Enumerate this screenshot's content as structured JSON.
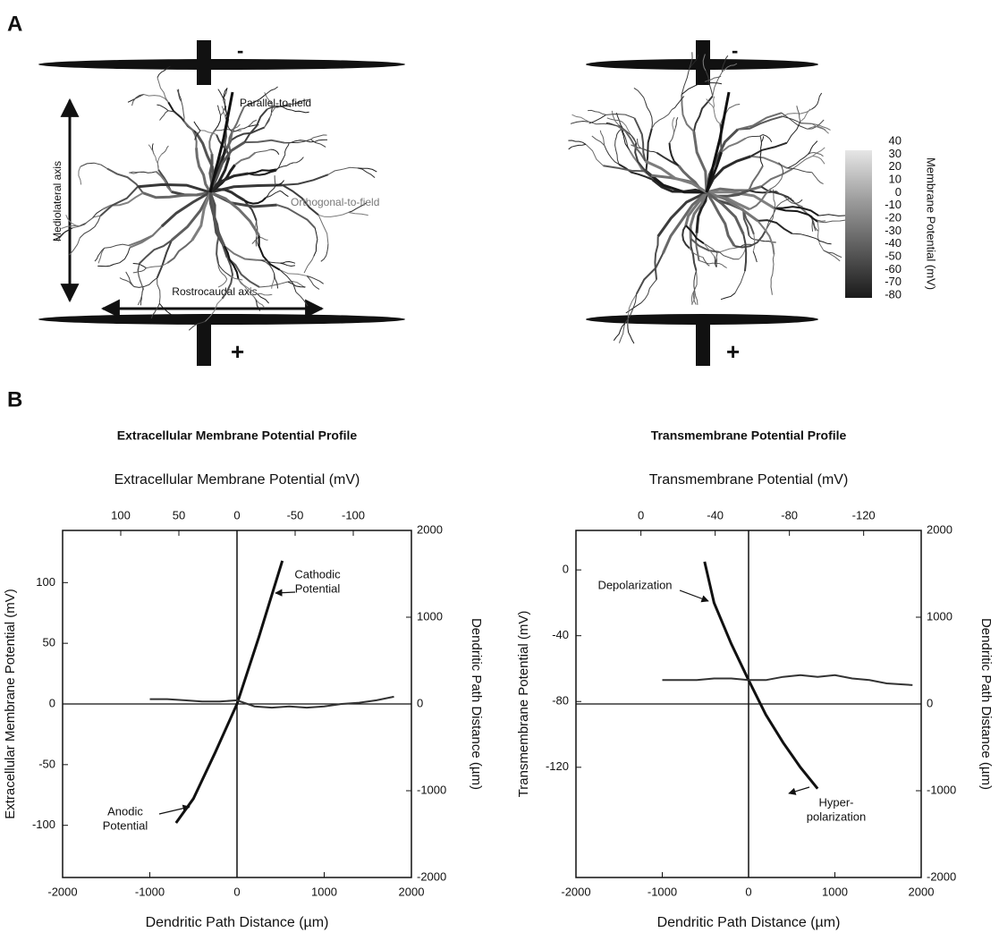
{
  "panel_labels": {
    "a": "A",
    "b": "B"
  },
  "panel_a": {
    "left": {
      "minus": "-",
      "plus": "+",
      "parallel": "Parallel-to-field",
      "orthogonal": "Orthogonal-to-field",
      "mediolateral": "Mediolateral axis",
      "rostrocaudal": "Rostrocaudal axis"
    },
    "right": {
      "minus": "-",
      "plus": "+"
    },
    "colorbar": {
      "label": "Membrane Potential (mV)",
      "ticks": [
        40,
        30,
        20,
        10,
        0,
        -10,
        -20,
        -30,
        -40,
        -50,
        -60,
        -70,
        -80
      ]
    }
  },
  "chart_data": [
    {
      "type": "line",
      "title": "Extracellular Membrane Potential Profile",
      "x2label": "Extracellular Membrane Potential (mV)",
      "xlabel": "Dendritic Path Distance (µm)",
      "ylabel": "Extracellular Membrane Potential (mV)",
      "y2label": "Dendritic Path Distance (µm)",
      "xlim": [
        -2000,
        2000
      ],
      "xticks": [
        -2000,
        -1000,
        0,
        1000,
        2000
      ],
      "ylim": [
        -143,
        143
      ],
      "yticks": [
        -100,
        -50,
        0,
        50,
        100
      ],
      "x2lim": [
        150,
        -150
      ],
      "x2ticks": [
        100,
        50,
        0,
        -50,
        -100
      ],
      "y2lim": [
        -2000,
        2000
      ],
      "y2ticks": [
        -2000,
        -1000,
        0,
        1000,
        2000
      ],
      "series": [
        {
          "color": "#111111",
          "x": [
            -700,
            -500,
            -250,
            0,
            250,
            520
          ],
          "values": [
            -98,
            -78,
            -40,
            0,
            55,
            118
          ]
        },
        {
          "color": "#333333",
          "x": [
            -1000,
            -800,
            -600,
            -400,
            -200,
            0,
            200,
            400,
            600,
            800,
            1000,
            1200,
            1400,
            1600,
            1800
          ],
          "values": [
            4,
            4,
            3,
            2,
            2,
            3,
            -2,
            -3,
            -2,
            -3,
            -2,
            0,
            1,
            3,
            6
          ]
        }
      ],
      "annotations": [
        {
          "lines": [
            "Cathodic",
            "Potential"
          ]
        },
        {
          "lines": [
            "Anodic",
            "Potential"
          ]
        }
      ]
    },
    {
      "type": "line",
      "title": "Transmembrane Potential Profile",
      "x2label": "Transmembrane Potential (mV)",
      "xlabel": "Dendritic Path Distance (µm)",
      "ylabel": "Transmembrane Potential (mV)",
      "y2label": "Dendritic Path Distance (µm)",
      "xlim": [
        -2000,
        2000
      ],
      "xticks": [
        -2000,
        -1000,
        0,
        1000,
        2000
      ],
      "ylim": [
        -187,
        24
      ],
      "yticks": [
        -120,
        -80,
        -40,
        0
      ],
      "x2lim": [
        35,
        -151
      ],
      "x2ticks": [
        0,
        -40,
        -80,
        -120
      ],
      "y2lim": [
        -2000,
        2000
      ],
      "y2ticks": [
        -2000,
        -1000,
        0,
        1000,
        2000
      ],
      "series": [
        {
          "color": "#111111",
          "x": [
            -510,
            -400,
            -200,
            0,
            200,
            400,
            600,
            800
          ],
          "values": [
            5,
            -20,
            -45,
            -67,
            -88,
            -105,
            -120,
            -133
          ]
        },
        {
          "color": "#333333",
          "x": [
            -1000,
            -800,
            -600,
            -400,
            -200,
            0,
            200,
            400,
            600,
            800,
            1000,
            1200,
            1400,
            1600,
            1900
          ],
          "values": [
            -67,
            -67,
            -67,
            -66,
            -66,
            -67,
            -67,
            -65,
            -64,
            -65,
            -64,
            -66,
            -67,
            -69,
            -70
          ]
        }
      ],
      "annotations": [
        {
          "lines": [
            "Depolarization"
          ]
        },
        {
          "lines": [
            "Hyper-",
            "polarization"
          ]
        }
      ]
    }
  ]
}
